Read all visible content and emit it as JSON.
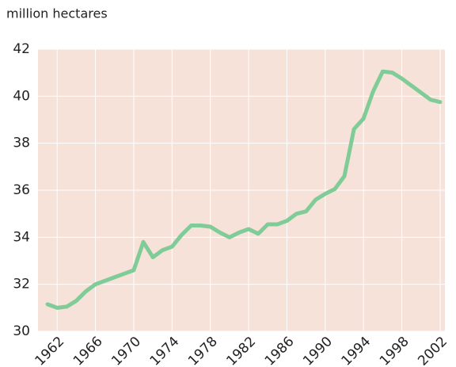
{
  "chart_data": {
    "type": "line",
    "title": "million hectares",
    "x": [
      1961,
      1962,
      1963,
      1964,
      1965,
      1966,
      1967,
      1968,
      1969,
      1970,
      1971,
      1972,
      1973,
      1974,
      1975,
      1976,
      1977,
      1978,
      1979,
      1980,
      1981,
      1982,
      1983,
      1984,
      1985,
      1986,
      1987,
      1988,
      1989,
      1990,
      1991,
      1992,
      1993,
      1994,
      1995,
      1996,
      1997,
      1998,
      1999,
      2000,
      2001,
      2002
    ],
    "series": [
      {
        "name": "million hectares",
        "color": "#80cc98",
        "values": [
          31.15,
          31.0,
          31.05,
          31.3,
          31.7,
          32.0,
          32.15,
          32.3,
          32.45,
          32.6,
          33.8,
          33.15,
          33.45,
          33.6,
          34.1,
          34.5,
          34.5,
          34.45,
          34.2,
          34.0,
          34.2,
          34.35,
          34.15,
          34.55,
          34.55,
          34.7,
          35.0,
          35.1,
          35.6,
          35.85,
          36.05,
          36.6,
          38.6,
          39.05,
          40.2,
          41.05,
          41.0,
          40.75,
          40.45,
          40.15,
          39.85,
          39.75
        ]
      }
    ],
    "xlim": [
      1960,
      2002.5
    ],
    "ylim": [
      30,
      42
    ],
    "xticks": [
      1962,
      1966,
      1970,
      1974,
      1978,
      1982,
      1986,
      1990,
      1994,
      1998,
      2002
    ],
    "yticks": [
      30,
      32,
      34,
      36,
      38,
      40,
      42
    ],
    "grid": true,
    "background": "#f6e2d8"
  }
}
